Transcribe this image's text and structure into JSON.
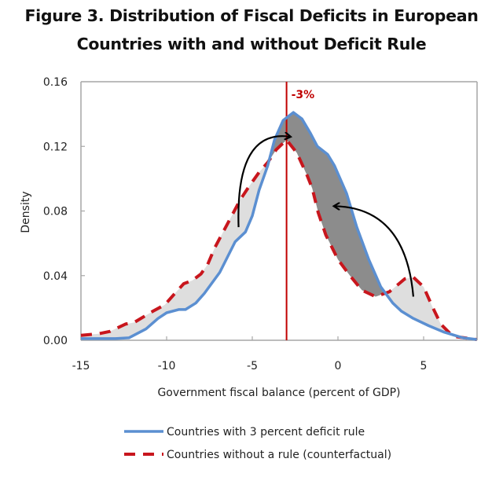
{
  "title_line1": "Figure 3. Distribution of Fiscal Deficits in European",
  "title_line2": "Countries with and without Deficit Rule",
  "colors": {
    "rule_line": "#5b8fd1",
    "no_rule_line": "#c8161d",
    "threshold_line": "#c00000",
    "shade_light": "#dedede",
    "shade_dark": "#8c8c8c",
    "arrow": "#000000",
    "axis": "#a6a6a6"
  },
  "chart_data": {
    "type": "line",
    "title": "Figure 3. Distribution of Fiscal Deficits in European Countries with and without Deficit Rule",
    "xlabel": "Government fiscal balance (percent of GDP)",
    "ylabel": "Density",
    "xlim": [
      -15,
      8.1
    ],
    "ylim": [
      0,
      0.16
    ],
    "xticks": [
      -15,
      -10,
      -5,
      0,
      5
    ],
    "xtick_labels": [
      "-15",
      "-10",
      "-5",
      "0",
      "5"
    ],
    "yticks": [
      0,
      0.04,
      0.08,
      0.12,
      0.16
    ],
    "ytick_labels": [
      "0.00",
      "0.04",
      "0.08",
      "0.12",
      "0.16"
    ],
    "grid": false,
    "legend_position": "bottom",
    "series": [
      {
        "name": "Countries with 3 percent deficit rule",
        "style": "solid",
        "x": [
          -15,
          -13,
          -12.2,
          -11.2,
          -10.5,
          -10,
          -9.3,
          -8.9,
          -8.3,
          -7.8,
          -6.9,
          -6.0,
          -5.4,
          -5.0,
          -4.6,
          -4.1,
          -3.7,
          -3.2,
          -2.6,
          -2.1,
          -1.6,
          -1.2,
          -0.6,
          -0.2,
          0.5,
          1.1,
          1.8,
          2.5,
          3.2,
          3.7,
          4.4,
          5.3,
          6.2,
          7.3,
          8.1
        ],
        "y": [
          0.001,
          0.001,
          0.0015,
          0.007,
          0.0135,
          0.017,
          0.019,
          0.019,
          0.023,
          0.029,
          0.042,
          0.061,
          0.067,
          0.077,
          0.093,
          0.108,
          0.124,
          0.136,
          0.141,
          0.137,
          0.128,
          0.12,
          0.115,
          0.108,
          0.091,
          0.07,
          0.05,
          0.033,
          0.023,
          0.018,
          0.0135,
          0.009,
          0.005,
          0.0015,
          0.0005
        ]
      },
      {
        "name": "Countries without a rule (counterfactual)",
        "style": "dashed",
        "x": [
          -15,
          -14,
          -13.3,
          -12.4,
          -11.9,
          -10.8,
          -10.1,
          -9.6,
          -9.0,
          -8.5,
          -8.0,
          -7.6,
          -7.2,
          -6.7,
          -6.2,
          -5.7,
          -5.2,
          -4.6,
          -4.1,
          -3.6,
          -3.0,
          -2.4,
          -1.8,
          -1.5,
          -1.15,
          -0.7,
          0.0,
          0.7,
          1.4,
          2.2,
          3.0,
          3.9,
          4.4,
          5.0,
          5.5,
          6.0,
          6.7,
          8.1
        ],
        "y": [
          0.003,
          0.004,
          0.0055,
          0.01,
          0.011,
          0.018,
          0.022,
          0.028,
          0.035,
          0.037,
          0.041,
          0.047,
          0.057,
          0.067,
          0.077,
          0.087,
          0.095,
          0.104,
          0.11,
          0.118,
          0.124,
          0.116,
          0.102,
          0.094,
          0.079,
          0.065,
          0.05,
          0.04,
          0.031,
          0.027,
          0.03,
          0.038,
          0.039,
          0.033,
          0.021,
          0.01,
          0.0025,
          0.0005
        ]
      }
    ],
    "reference_line": {
      "x": -3,
      "label": "-3%"
    },
    "annotations": [
      {
        "type": "arrow",
        "description": "shift of mass from left tail toward peak",
        "from": [
          -5.8,
          0.07
        ],
        "to": [
          -2.8,
          0.126
        ]
      },
      {
        "type": "arrow",
        "description": "shift of mass from right bump toward center",
        "from": [
          4.4,
          0.027
        ],
        "to": [
          -0.2,
          0.083
        ]
      }
    ]
  }
}
